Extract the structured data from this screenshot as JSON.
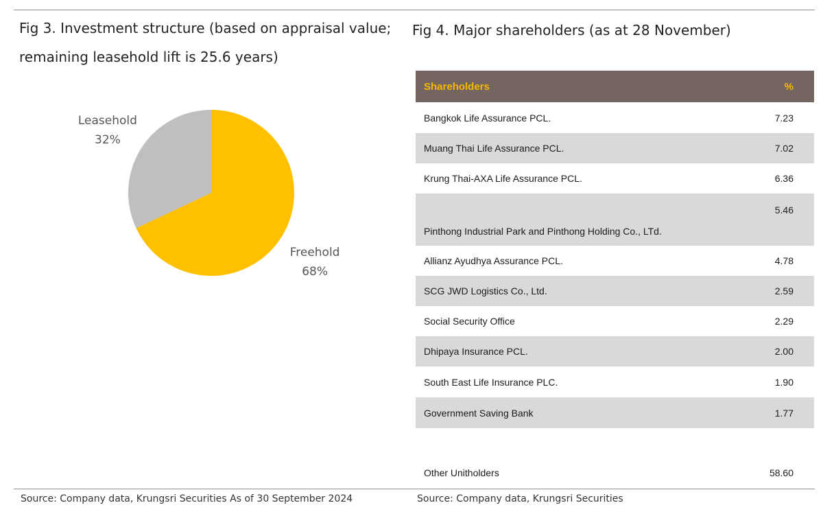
{
  "fig3": {
    "title": "Fig 3. Investment structure (based on appraisal value; remaining leasehold lift is 25.6 years)",
    "source": "Source: Company data, Krungsri Securities  As of 30 September 2024"
  },
  "chart_data": {
    "type": "pie",
    "title": "Fig 3. Investment structure (based on appraisal value; remaining leasehold lift is 25.6 years)",
    "categories": [
      "Freehold",
      "Leasehold"
    ],
    "values": [
      68,
      32
    ],
    "labels": [
      "68%",
      "32%"
    ],
    "colors": [
      "#ffc000",
      "#bfbfbf"
    ],
    "start": "12 o'clock, clockwise"
  },
  "fig4": {
    "title": "Fig 4. Major shareholders (as at 28 November)",
    "header": {
      "name": "Shareholders",
      "pct": "%"
    },
    "rows": [
      {
        "name": "Bangkok Life Assurance PCL.",
        "pct": "7.23"
      },
      {
        "name": "Muang Thai Life Assurance PCL.",
        "pct": "7.02"
      },
      {
        "name": "Krung Thai-AXA Life Assurance PCL.",
        "pct": "6.36"
      },
      {
        "name": "Pinthong Industrial Park and Pinthong Holding Co., LTd.",
        "pct": "5.46"
      },
      {
        "name": "Allianz Ayudhya Assurance PCL.",
        "pct": "4.78"
      },
      {
        "name": "SCG JWD Logistics Co., Ltd.",
        "pct": "2.59"
      },
      {
        "name": "Social Security Office",
        "pct": "2.29"
      },
      {
        "name": "Dhipaya Insurance PCL.",
        "pct": "2.00"
      },
      {
        "name": "South East Life Insurance PLC.",
        "pct": "1.90"
      },
      {
        "name": "Government Saving Bank",
        "pct": "1.77"
      }
    ],
    "other": {
      "name": "Other Unitholders",
      "pct": "58.60"
    },
    "source": "Source: Company data, Krungsri Securities"
  }
}
